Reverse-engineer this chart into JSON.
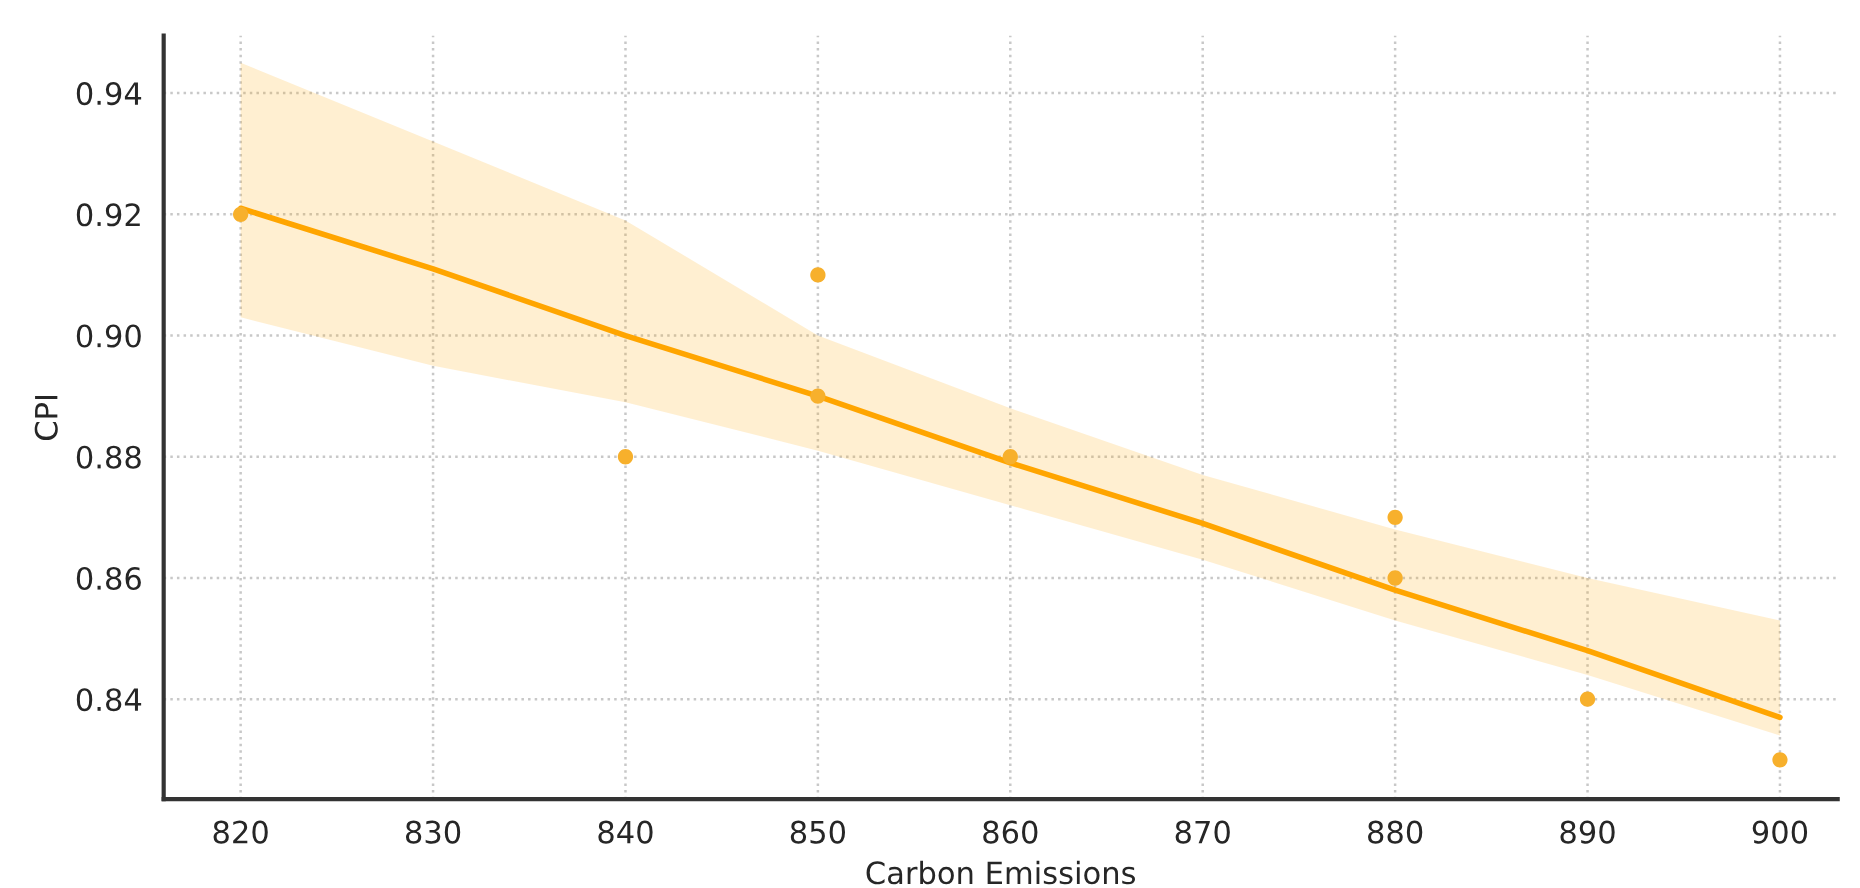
{
  "chart_data": {
    "type": "scatter",
    "xlabel": "Carbon Emissions",
    "ylabel": "CPI",
    "xlim": [
      816,
      903
    ],
    "ylim": [
      0.8235,
      0.9495
    ],
    "xticks": [
      820,
      830,
      840,
      850,
      860,
      870,
      880,
      890,
      900
    ],
    "yticks": [
      {
        "value": 0.84,
        "label": "0.84"
      },
      {
        "value": 0.86,
        "label": "0.86"
      },
      {
        "value": 0.88,
        "label": "0.88"
      },
      {
        "value": 0.9,
        "label": "0.90"
      },
      {
        "value": 0.92,
        "label": "0.92"
      },
      {
        "value": 0.94,
        "label": "0.94"
      }
    ],
    "grid": true,
    "series": [
      {
        "marker": "circle",
        "color": "#f7b02c",
        "x": [
          820,
          840,
          850,
          850,
          860,
          880,
          880,
          890,
          900
        ],
        "values": [
          0.92,
          0.88,
          0.91,
          0.89,
          0.88,
          0.87,
          0.86,
          0.84,
          0.83
        ]
      },
      {
        "type": "line",
        "marker": "none",
        "color": "#ffa500",
        "line_style": "solid",
        "x": [
          820,
          830,
          840,
          850,
          860,
          870,
          880,
          890,
          900
        ],
        "values": [
          0.921,
          0.911,
          0.9,
          0.89,
          0.879,
          0.869,
          0.858,
          0.848,
          0.837
        ],
        "lower": [
          0.903,
          0.895,
          0.889,
          0.881,
          0.872,
          0.863,
          0.853,
          0.844,
          0.834
        ],
        "upper": [
          0.945,
          0.932,
          0.919,
          0.9,
          0.888,
          0.877,
          0.868,
          0.86,
          0.853
        ]
      }
    ]
  }
}
